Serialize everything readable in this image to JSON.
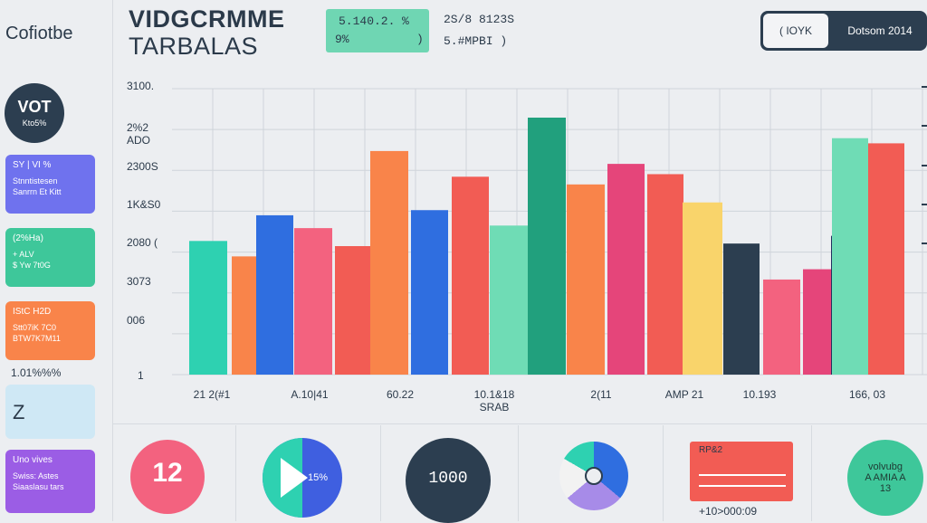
{
  "sidebar": {
    "brand": "Cofiotbe",
    "avatar": {
      "line1": "VOT",
      "line2": "Kto5%"
    },
    "cards": [
      {
        "title": "SY | VI %",
        "lines": [
          "Stnntistesen",
          "Sanrrn Et Kitt"
        ],
        "color": "#6f72ee"
      },
      {
        "title": "(2%Ha)",
        "lines": [
          "+ ALV",
          "$ Yw 7t0G"
        ],
        "color": "#3ec79a"
      },
      {
        "title": "IStC H2D",
        "lines": [
          "Stt07iK 7C0",
          "BTW7K7M11"
        ],
        "color": "#f9844a"
      }
    ],
    "metric_label": "1.01%%%",
    "z_tile": {
      "text": "Z",
      "color": "#cfe8f5"
    },
    "bottom_card": {
      "title": "Uno vives",
      "lines": [
        "Swiss: Astes",
        "Siaaslasu tars"
      ],
      "color": "#9b5de5"
    }
  },
  "header": {
    "title_line1": "VIDGCRMME",
    "title_line2": "TARBALAS",
    "stat_box": {
      "line1": "5.140.2.",
      "line1b": "%",
      "line2": "9%",
      "line2b": ")"
    },
    "stat_text": {
      "line1": "2S/8 8123S",
      "line2": "5.#MPBI )"
    },
    "toggle": {
      "option_a": "( IOYK",
      "option_b": "Dotsom 2014"
    }
  },
  "chart_data": {
    "type": "bar",
    "y_tick_labels": [
      "3100.",
      "2%2 ADO",
      "2300S",
      "1K&S0",
      "2080 (",
      "3073",
      "006",
      "1"
    ],
    "x_tick_labels": [
      "21 2(#1",
      "A.10|41",
      "60.22",
      "10.1&18\nSRAB",
      "2(11",
      "AMP 21",
      "10.193",
      "166, 03"
    ],
    "bars": [
      {
        "value": 0.52,
        "color": "#2ed1b1"
      },
      {
        "value": 0.46,
        "color": "#f9844a"
      },
      {
        "value": 0.62,
        "color": "#2f6ee0"
      },
      {
        "value": 0.57,
        "color": "#f3627f"
      },
      {
        "value": 0.5,
        "color": "#f25c54"
      },
      {
        "value": 0.87,
        "color": "#f9844a"
      },
      {
        "value": 0.64,
        "color": "#2f6ee0"
      },
      {
        "value": 0.77,
        "color": "#f25c54"
      },
      {
        "value": 0.58,
        "color": "#6fdcb5"
      },
      {
        "value": 1.0,
        "color": "#21a07d"
      },
      {
        "value": 0.74,
        "color": "#f9844a"
      },
      {
        "value": 0.82,
        "color": "#e5457a"
      },
      {
        "value": 0.78,
        "color": "#f25c54"
      },
      {
        "value": 0.67,
        "color": "#f9d46b"
      },
      {
        "value": 0.51,
        "color": "#2c3e50"
      },
      {
        "value": 0.37,
        "color": "#f3627f"
      },
      {
        "value": 0.41,
        "color": "#e5457a"
      },
      {
        "value": 0.54,
        "color": "#22305f"
      },
      {
        "value": 0.92,
        "color": "#6fdcb5"
      },
      {
        "value": 0.9,
        "color": "#f25c54"
      }
    ]
  },
  "widgets": {
    "number_gauge": {
      "value": "12",
      "color": "#f3627f"
    },
    "play_gauge": {
      "text": "15%",
      "color": "#3f5fe0"
    },
    "dark_gauge": {
      "text": "1000",
      "color": "#2c3e50"
    },
    "donut": {
      "colors": [
        "#2f6ee0",
        "#f2f2f2",
        "#a78be8",
        "#2ed1b1"
      ]
    },
    "bar_card": {
      "title": "RP&2",
      "caption": "+10>000:09",
      "color": "#f25c54"
    },
    "green_gauge": {
      "line1": "volvubg",
      "line2": "A AMIA A",
      "line3": "13",
      "color": "#3ec79a"
    }
  }
}
